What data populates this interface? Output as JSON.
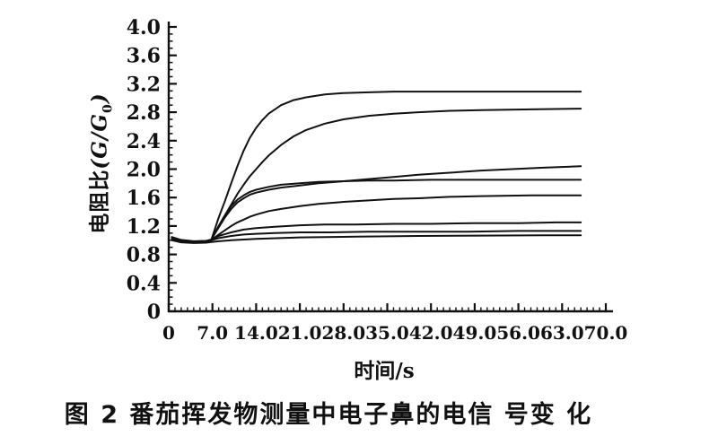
{
  "figure": {
    "caption": "图 2  番茄挥发物测量中电子鼻的电信 号变 化"
  },
  "chart_data": {
    "type": "line",
    "title": "",
    "xlabel": {
      "cn": "时间",
      "unit": "/s"
    },
    "ylabel": {
      "cn": "电阻比",
      "open": "(",
      "G": "G",
      "slash": "/",
      "sub0": "0",
      "close": ")"
    },
    "xlim": [
      0,
      70
    ],
    "ylim": [
      0,
      4.0
    ],
    "x_major_step": 7,
    "x_minor_step": 1,
    "y_major_step": 0.4,
    "y_minor_step": 0.1,
    "grid": false,
    "legend": null,
    "line_color": "#111111",
    "x_ticks": [
      {
        "v": 0,
        "label": "0"
      },
      {
        "v": 7,
        "label": "7.0"
      },
      {
        "v": 14,
        "label": "14.0"
      },
      {
        "v": 21,
        "label": "21.0"
      },
      {
        "v": 28,
        "label": "28.0"
      },
      {
        "v": 35,
        "label": "35.0"
      },
      {
        "v": 42,
        "label": "42.0"
      },
      {
        "v": 49,
        "label": "49.0"
      },
      {
        "v": 56,
        "label": "56.0"
      },
      {
        "v": 63,
        "label": "63.0"
      },
      {
        "v": 70,
        "label": "70.0"
      }
    ],
    "y_ticks": [
      {
        "v": 0.0,
        "label": "0"
      },
      {
        "v": 0.4,
        "label": "0.4"
      },
      {
        "v": 0.8,
        "label": "0.8"
      },
      {
        "v": 1.2,
        "label": "1.2"
      },
      {
        "v": 1.6,
        "label": "1.6"
      },
      {
        "v": 2.0,
        "label": "2.0"
      },
      {
        "v": 2.4,
        "label": "2.4"
      },
      {
        "v": 2.8,
        "label": "2.8"
      },
      {
        "v": 3.2,
        "label": "3.2"
      },
      {
        "v": 3.6,
        "label": "3.6"
      },
      {
        "v": 4.0,
        "label": "4.0"
      }
    ],
    "series": [
      {
        "name": "curve-1",
        "end_value": 3.09,
        "points": [
          [
            0.5,
            1.03
          ],
          [
            2,
            0.99
          ],
          [
            4,
            0.975
          ],
          [
            6,
            0.985
          ],
          [
            6.8,
            1.0
          ],
          [
            8,
            1.32
          ],
          [
            9,
            1.55
          ],
          [
            10,
            1.8
          ],
          [
            11,
            2.04
          ],
          [
            12,
            2.26
          ],
          [
            13,
            2.44
          ],
          [
            14,
            2.58
          ],
          [
            15,
            2.69
          ],
          [
            16,
            2.78
          ],
          [
            18,
            2.9
          ],
          [
            20,
            2.97
          ],
          [
            22,
            3.01
          ],
          [
            25,
            3.05
          ],
          [
            28,
            3.07
          ],
          [
            32,
            3.08
          ],
          [
            36,
            3.09
          ],
          [
            42,
            3.09
          ],
          [
            50,
            3.09
          ],
          [
            58,
            3.09
          ],
          [
            66,
            3.09
          ]
        ]
      },
      {
        "name": "curve-2",
        "end_value": 2.85,
        "points": [
          [
            0.5,
            1.02
          ],
          [
            2,
            0.985
          ],
          [
            4,
            0.97
          ],
          [
            6,
            0.98
          ],
          [
            6.8,
            1.0
          ],
          [
            8,
            1.2
          ],
          [
            9,
            1.35
          ],
          [
            10,
            1.5
          ],
          [
            11,
            1.65
          ],
          [
            12,
            1.78
          ],
          [
            13,
            1.9
          ],
          [
            14,
            2.0
          ],
          [
            15,
            2.1
          ],
          [
            16,
            2.19
          ],
          [
            18,
            2.34
          ],
          [
            20,
            2.46
          ],
          [
            22,
            2.55
          ],
          [
            25,
            2.64
          ],
          [
            28,
            2.7
          ],
          [
            32,
            2.75
          ],
          [
            36,
            2.78
          ],
          [
            40,
            2.8
          ],
          [
            45,
            2.82
          ],
          [
            50,
            2.83
          ],
          [
            58,
            2.84
          ],
          [
            66,
            2.85
          ]
        ]
      },
      {
        "name": "curve-3",
        "end_value": 2.04,
        "points": [
          [
            0.5,
            1.04
          ],
          [
            2,
            1.0
          ],
          [
            4,
            0.98
          ],
          [
            6,
            0.99
          ],
          [
            6.8,
            1.01
          ],
          [
            8,
            1.18
          ],
          [
            9,
            1.32
          ],
          [
            10,
            1.44
          ],
          [
            11,
            1.53
          ],
          [
            12,
            1.59
          ],
          [
            13,
            1.64
          ],
          [
            14,
            1.67
          ],
          [
            16,
            1.71
          ],
          [
            18,
            1.74
          ],
          [
            21,
            1.77
          ],
          [
            24,
            1.8
          ],
          [
            28,
            1.83
          ],
          [
            32,
            1.86
          ],
          [
            36,
            1.89
          ],
          [
            40,
            1.92
          ],
          [
            45,
            1.95
          ],
          [
            50,
            1.98
          ],
          [
            55,
            2.0
          ],
          [
            60,
            2.02
          ],
          [
            66,
            2.04
          ]
        ]
      },
      {
        "name": "curve-4",
        "end_value": 1.85,
        "points": [
          [
            0.5,
            1.01
          ],
          [
            2,
            0.975
          ],
          [
            4,
            0.965
          ],
          [
            6,
            0.975
          ],
          [
            6.8,
            1.0
          ],
          [
            8,
            1.2
          ],
          [
            9,
            1.35
          ],
          [
            10,
            1.48
          ],
          [
            11,
            1.57
          ],
          [
            12,
            1.63
          ],
          [
            13,
            1.68
          ],
          [
            14,
            1.71
          ],
          [
            16,
            1.75
          ],
          [
            18,
            1.78
          ],
          [
            21,
            1.8
          ],
          [
            24,
            1.82
          ],
          [
            28,
            1.83
          ],
          [
            32,
            1.84
          ],
          [
            36,
            1.84
          ],
          [
            42,
            1.85
          ],
          [
            50,
            1.85
          ],
          [
            58,
            1.85
          ],
          [
            66,
            1.85
          ]
        ]
      },
      {
        "name": "curve-5",
        "end_value": 1.63,
        "points": [
          [
            0.5,
            1.03
          ],
          [
            2,
            0.99
          ],
          [
            4,
            0.975
          ],
          [
            6,
            0.98
          ],
          [
            6.8,
            1.0
          ],
          [
            8,
            1.08
          ],
          [
            9,
            1.14
          ],
          [
            10,
            1.2
          ],
          [
            11,
            1.25
          ],
          [
            12,
            1.29
          ],
          [
            13,
            1.33
          ],
          [
            14,
            1.36
          ],
          [
            16,
            1.41
          ],
          [
            18,
            1.44
          ],
          [
            21,
            1.48
          ],
          [
            24,
            1.51
          ],
          [
            28,
            1.54
          ],
          [
            32,
            1.56
          ],
          [
            36,
            1.58
          ],
          [
            40,
            1.59
          ],
          [
            45,
            1.61
          ],
          [
            50,
            1.62
          ],
          [
            58,
            1.63
          ],
          [
            66,
            1.63
          ]
        ]
      },
      {
        "name": "curve-6",
        "end_value": 1.25,
        "points": [
          [
            0.5,
            1.02
          ],
          [
            2,
            0.98
          ],
          [
            4,
            0.97
          ],
          [
            6,
            0.975
          ],
          [
            6.8,
            1.0
          ],
          [
            8,
            1.06
          ],
          [
            10,
            1.11
          ],
          [
            12,
            1.15
          ],
          [
            14,
            1.17
          ],
          [
            17,
            1.19
          ],
          [
            21,
            1.21
          ],
          [
            25,
            1.22
          ],
          [
            30,
            1.22
          ],
          [
            36,
            1.23
          ],
          [
            42,
            1.23
          ],
          [
            49,
            1.24
          ],
          [
            56,
            1.24
          ],
          [
            62,
            1.25
          ],
          [
            66,
            1.25
          ]
        ]
      },
      {
        "name": "curve-7",
        "end_value": 1.13,
        "points": [
          [
            0.5,
            1.045
          ],
          [
            2,
            1.005
          ],
          [
            4,
            0.985
          ],
          [
            6,
            0.99
          ],
          [
            6.8,
            1.0
          ],
          [
            8,
            1.03
          ],
          [
            10,
            1.06
          ],
          [
            12,
            1.08
          ],
          [
            14,
            1.09
          ],
          [
            17,
            1.1
          ],
          [
            21,
            1.11
          ],
          [
            26,
            1.11
          ],
          [
            32,
            1.12
          ],
          [
            40,
            1.12
          ],
          [
            48,
            1.12
          ],
          [
            56,
            1.13
          ],
          [
            66,
            1.13
          ]
        ]
      },
      {
        "name": "curve-8",
        "end_value": 1.07,
        "points": [
          [
            0.5,
            1.0
          ],
          [
            2,
            0.97
          ],
          [
            4,
            0.96
          ],
          [
            6,
            0.965
          ],
          [
            6.8,
            0.975
          ],
          [
            8,
            0.985
          ],
          [
            10,
            1.0
          ],
          [
            14,
            1.02
          ],
          [
            21,
            1.04
          ],
          [
            30,
            1.05
          ],
          [
            40,
            1.06
          ],
          [
            50,
            1.065
          ],
          [
            60,
            1.07
          ],
          [
            66,
            1.07
          ]
        ]
      }
    ]
  }
}
